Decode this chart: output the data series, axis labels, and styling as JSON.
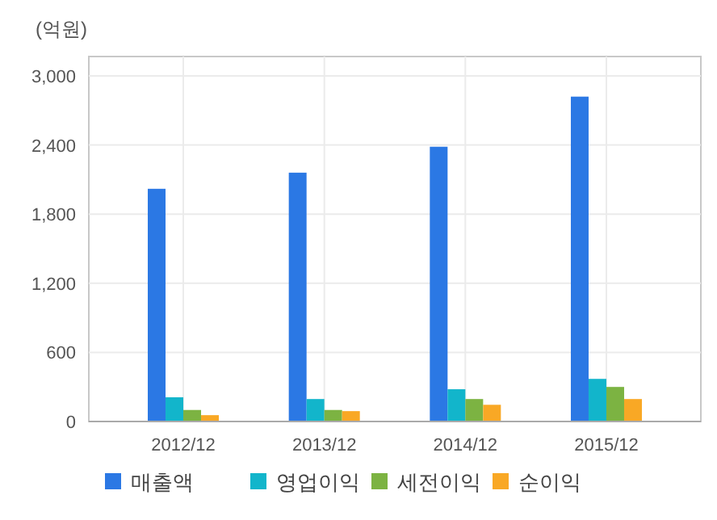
{
  "chart_data": {
    "type": "bar",
    "ylabel": "(억원)",
    "categories": [
      "2012/12",
      "2013/12",
      "2014/12",
      "2015/12"
    ],
    "series": [
      {
        "name": "매출액",
        "color": "#2b78e4",
        "values": [
          2020,
          2160,
          2385,
          2820
        ]
      },
      {
        "name": "영업이익",
        "color": "#12b5cb",
        "values": [
          210,
          195,
          280,
          370
        ]
      },
      {
        "name": "세전이익",
        "color": "#7cb342",
        "values": [
          100,
          100,
          195,
          300
        ]
      },
      {
        "name": "순이익",
        "color": "#f9a825",
        "values": [
          55,
          90,
          145,
          195
        ]
      }
    ],
    "ylim": [
      0,
      3000
    ],
    "yticks": [
      {
        "value": 0,
        "label": "0"
      },
      {
        "value": 600,
        "label": "600"
      },
      {
        "value": 1200,
        "label": "1,200"
      },
      {
        "value": 1800,
        "label": "1,800"
      },
      {
        "value": 2400,
        "label": "2,400"
      },
      {
        "value": 3000,
        "label": "3,000"
      }
    ],
    "grid": true,
    "legend": "bottom"
  }
}
